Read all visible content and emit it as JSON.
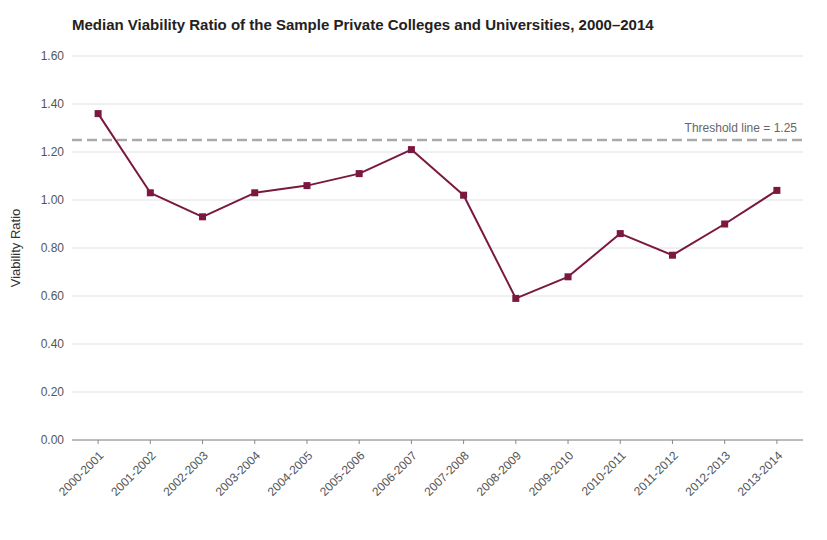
{
  "chart_data": {
    "type": "line",
    "title": "Median Viability Ratio of the Sample Private Colleges and Universities, 2000–2014",
    "ylabel": "Viability Ratio",
    "categories": [
      "2000-2001",
      "2001-2002",
      "2002-2003",
      "2003-2004",
      "2004-2005",
      "2005-2006",
      "2006-2007",
      "2007-2008",
      "2008-2009",
      "2009-2010",
      "2010-2011",
      "2011-2012",
      "2012-2013",
      "2013-2014"
    ],
    "values": [
      1.36,
      1.03,
      0.93,
      1.03,
      1.06,
      1.11,
      1.21,
      1.02,
      0.59,
      0.68,
      0.86,
      0.77,
      0.9,
      1.04
    ],
    "color": "#7B1840",
    "marker": "square",
    "threshold": 1.25,
    "threshold_label": "Threshold line = 1.25",
    "ylim": [
      0.0,
      1.6
    ],
    "yticks": [
      {
        "value": 0,
        "label": "0.00"
      },
      {
        "value": 0.2,
        "label": "0.20"
      },
      {
        "value": 0.4,
        "label": "0.40"
      },
      {
        "value": 0.6,
        "label": "0.60"
      },
      {
        "value": 0.8,
        "label": "0.80"
      },
      {
        "value": 1.0,
        "label": "1.00"
      },
      {
        "value": 1.2,
        "label": "1.20"
      },
      {
        "value": 1.4,
        "label": "1.40"
      },
      {
        "value": 1.6,
        "label": "1.60"
      }
    ],
    "grid": true
  }
}
